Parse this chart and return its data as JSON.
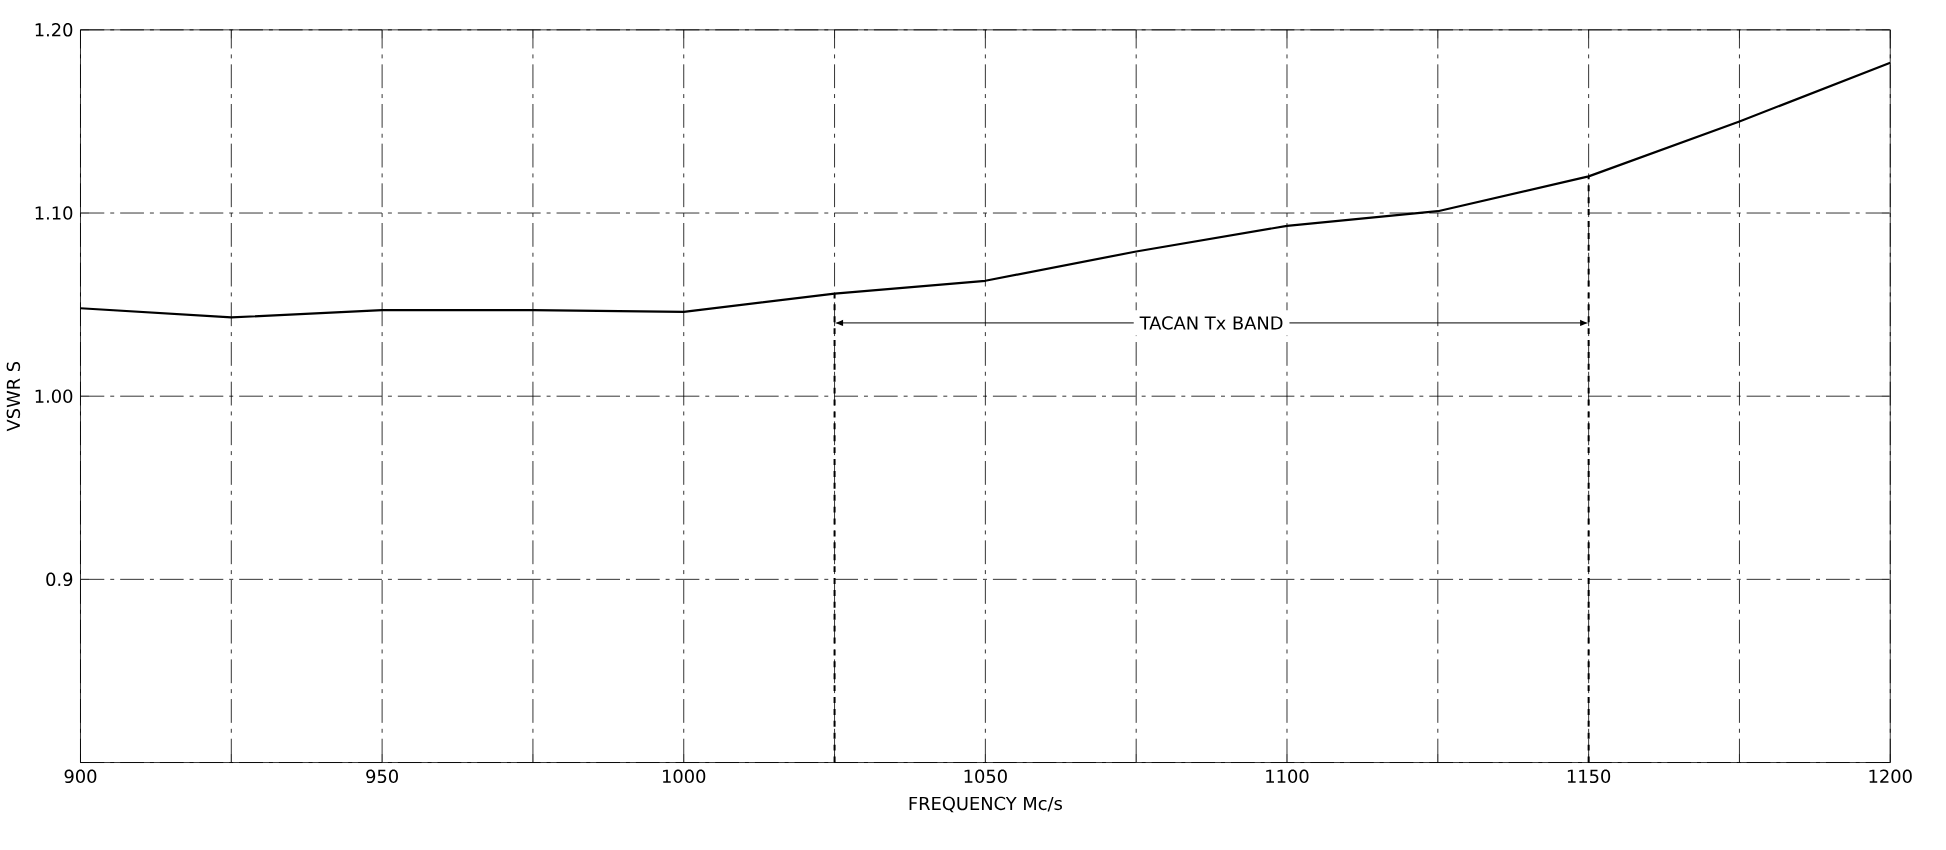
{
  "chart_data": {
    "type": "line",
    "xlabel": "FREQUENCY  Mc/s",
    "ylabel": "VSWR S",
    "x": [
      900,
      925,
      950,
      975,
      1000,
      1025,
      1050,
      1075,
      1100,
      1125,
      1150,
      1175,
      1200
    ],
    "series": [
      {
        "color": "#000000",
        "values": [
          1.048,
          1.043,
          1.047,
          1.047,
          1.046,
          1.056,
          1.063,
          1.079,
          1.093,
          1.101,
          1.12,
          1.15,
          1.182
        ]
      }
    ],
    "xlim": [
      900,
      1200
    ],
    "ylim": [
      0.8,
      1.2
    ],
    "xticks": [
      900,
      {
        "value": 925,
        "label": null
      },
      950,
      {
        "value": 975,
        "label": null
      },
      1000,
      {
        "value": 1025,
        "label": null
      },
      1050,
      {
        "value": 1075,
        "label": null
      },
      1100,
      {
        "value": 1125,
        "label": null
      },
      1150,
      {
        "value": 1175,
        "label": null
      },
      1200
    ],
    "yticks": [
      {
        "value": 0.8,
        "label": null
      },
      {
        "value": 0.9,
        "label": "0.9"
      },
      {
        "value": 1.0,
        "label": "1.00"
      },
      {
        "value": 1.1,
        "label": "1.10"
      },
      {
        "value": 1.2,
        "label": "1.20"
      }
    ],
    "ref_lines": [
      {
        "axis": "x",
        "value": 1025,
        "color": "#000000",
        "line_style": "dashed"
      },
      {
        "axis": "x",
        "value": 1150,
        "color": "#000000",
        "line_style": "dashed"
      }
    ],
    "annotations": [
      "TACAN Tx BAND"
    ],
    "grid": true,
    "marker": "none",
    "line_style": "solid"
  }
}
